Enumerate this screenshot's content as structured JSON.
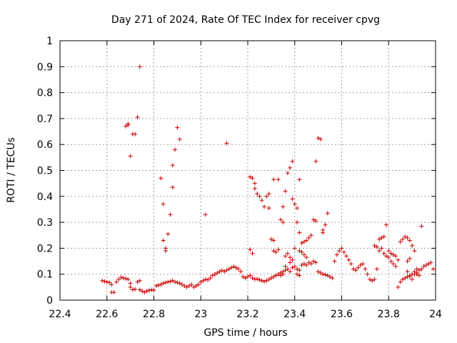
{
  "chart_data": {
    "type": "scatter",
    "title": "Day 271 of 2024, Rate Of TEC Index for receiver cpvg",
    "xlabel": "GPS time / hours",
    "ylabel": "ROTI / TECUs",
    "xlim": [
      22.4,
      24
    ],
    "ylim": [
      0,
      1
    ],
    "x_ticks": [
      22.4,
      22.6,
      22.8,
      23,
      23.2,
      23.4,
      23.6,
      23.8,
      24
    ],
    "x_tick_labels": [
      "22.4",
      "22.6",
      "22.8",
      "23",
      "23.2",
      "23.4",
      "23.6",
      "23.8",
      "24"
    ],
    "y_ticks": [
      0,
      0.1,
      0.2,
      0.3,
      0.4,
      0.5,
      0.6,
      0.7,
      0.8,
      0.9,
      1
    ],
    "y_tick_labels": [
      "0",
      "0.1",
      "0.2",
      "0.3",
      "0.4",
      "0.5",
      "0.6",
      "0.7",
      "0.8",
      "0.9",
      "1"
    ],
    "grid": true,
    "marker": "+",
    "color": "#cc0000",
    "series": [
      {
        "name": "",
        "points": [
          [
            22.58,
            0.075
          ],
          [
            22.59,
            0.072
          ],
          [
            22.6,
            0.07
          ],
          [
            22.61,
            0.068
          ],
          [
            22.62,
            0.06
          ],
          [
            22.62,
            0.03
          ],
          [
            22.63,
            0.03
          ],
          [
            22.64,
            0.07
          ],
          [
            22.65,
            0.08
          ],
          [
            22.66,
            0.088
          ],
          [
            22.67,
            0.085
          ],
          [
            22.68,
            0.083
          ],
          [
            22.69,
            0.08
          ],
          [
            22.7,
            0.065
          ],
          [
            22.7,
            0.05
          ],
          [
            22.71,
            0.04
          ],
          [
            22.72,
            0.042
          ],
          [
            22.73,
            0.07
          ],
          [
            22.74,
            0.075
          ],
          [
            22.74,
            0.04
          ],
          [
            22.75,
            0.035
          ],
          [
            22.76,
            0.03
          ],
          [
            22.77,
            0.035
          ],
          [
            22.78,
            0.038
          ],
          [
            22.79,
            0.04
          ],
          [
            22.8,
            0.038
          ],
          [
            22.81,
            0.055
          ],
          [
            22.82,
            0.058
          ],
          [
            22.83,
            0.06
          ],
          [
            22.84,
            0.065
          ],
          [
            22.85,
            0.068
          ],
          [
            22.86,
            0.07
          ],
          [
            22.87,
            0.072
          ],
          [
            22.88,
            0.075
          ],
          [
            22.89,
            0.07
          ],
          [
            22.9,
            0.068
          ],
          [
            22.91,
            0.065
          ],
          [
            22.92,
            0.06
          ],
          [
            22.93,
            0.055
          ],
          [
            22.94,
            0.05
          ],
          [
            22.95,
            0.055
          ],
          [
            22.96,
            0.06
          ],
          [
            22.97,
            0.05
          ],
          [
            22.98,
            0.055
          ],
          [
            22.99,
            0.06
          ],
          [
            23.0,
            0.07
          ],
          [
            23.01,
            0.075
          ],
          [
            23.02,
            0.08
          ],
          [
            23.03,
            0.078
          ],
          [
            23.04,
            0.085
          ],
          [
            23.05,
            0.095
          ],
          [
            23.06,
            0.1
          ],
          [
            23.07,
            0.105
          ],
          [
            23.08,
            0.11
          ],
          [
            23.09,
            0.115
          ],
          [
            23.1,
            0.11
          ],
          [
            23.11,
            0.115
          ],
          [
            23.12,
            0.12
          ],
          [
            23.13,
            0.125
          ],
          [
            23.14,
            0.13
          ],
          [
            23.15,
            0.125
          ],
          [
            23.16,
            0.12
          ],
          [
            23.17,
            0.11
          ],
          [
            23.18,
            0.09
          ],
          [
            23.19,
            0.085
          ],
          [
            23.2,
            0.09
          ],
          [
            23.21,
            0.095
          ],
          [
            23.22,
            0.085
          ],
          [
            23.23,
            0.08
          ],
          [
            23.24,
            0.082
          ],
          [
            23.25,
            0.078
          ],
          [
            23.26,
            0.075
          ],
          [
            23.27,
            0.072
          ],
          [
            23.28,
            0.075
          ],
          [
            23.29,
            0.08
          ],
          [
            23.3,
            0.085
          ],
          [
            23.31,
            0.09
          ],
          [
            23.32,
            0.095
          ],
          [
            23.33,
            0.1
          ],
          [
            23.34,
            0.105
          ],
          [
            23.35,
            0.11
          ],
          [
            23.36,
            0.115
          ],
          [
            23.37,
            0.12
          ],
          [
            23.38,
            0.11
          ],
          [
            23.39,
            0.125
          ],
          [
            23.4,
            0.13
          ],
          [
            23.41,
            0.12
          ],
          [
            23.42,
            0.115
          ],
          [
            23.43,
            0.135
          ],
          [
            23.44,
            0.14
          ],
          [
            23.45,
            0.135
          ],
          [
            23.46,
            0.145
          ],
          [
            23.47,
            0.14
          ],
          [
            23.48,
            0.15
          ],
          [
            23.49,
            0.145
          ],
          [
            23.5,
            0.11
          ],
          [
            23.51,
            0.105
          ],
          [
            23.52,
            0.1
          ],
          [
            23.53,
            0.098
          ],
          [
            23.54,
            0.095
          ],
          [
            23.55,
            0.09
          ],
          [
            23.56,
            0.085
          ],
          [
            23.57,
            0.15
          ],
          [
            23.58,
            0.175
          ],
          [
            23.59,
            0.19
          ],
          [
            23.6,
            0.2
          ],
          [
            23.61,
            0.185
          ],
          [
            23.62,
            0.17
          ],
          [
            23.63,
            0.155
          ],
          [
            23.64,
            0.14
          ],
          [
            23.65,
            0.12
          ],
          [
            23.66,
            0.115
          ],
          [
            23.67,
            0.125
          ],
          [
            23.68,
            0.135
          ],
          [
            23.69,
            0.14
          ],
          [
            23.7,
            0.12
          ],
          [
            23.71,
            0.1
          ],
          [
            23.72,
            0.08
          ],
          [
            23.73,
            0.075
          ],
          [
            23.74,
            0.08
          ],
          [
            23.75,
            0.12
          ],
          [
            23.76,
            0.19
          ],
          [
            23.77,
            0.2
          ],
          [
            23.78,
            0.18
          ],
          [
            23.79,
            0.17
          ],
          [
            23.8,
            0.165
          ],
          [
            23.81,
            0.15
          ],
          [
            23.82,
            0.14
          ],
          [
            23.83,
            0.13
          ],
          [
            23.84,
            0.05
          ],
          [
            23.85,
            0.07
          ],
          [
            23.86,
            0.08
          ],
          [
            23.87,
            0.085
          ],
          [
            23.88,
            0.09
          ],
          [
            23.89,
            0.095
          ],
          [
            23.9,
            0.1
          ],
          [
            23.91,
            0.11
          ],
          [
            23.92,
            0.105
          ],
          [
            23.93,
            0.115
          ],
          [
            23.94,
            0.12
          ],
          [
            23.95,
            0.13
          ],
          [
            23.96,
            0.135
          ],
          [
            23.97,
            0.14
          ],
          [
            23.98,
            0.145
          ],
          [
            23.99,
            0.12
          ],
          [
            22.68,
            0.67
          ],
          [
            22.69,
            0.675
          ],
          [
            22.69,
            0.68
          ],
          [
            22.7,
            0.555
          ],
          [
            22.71,
            0.64
          ],
          [
            22.72,
            0.64
          ],
          [
            22.73,
            0.705
          ],
          [
            22.74,
            0.9
          ],
          [
            22.83,
            0.47
          ],
          [
            22.84,
            0.37
          ],
          [
            22.84,
            0.23
          ],
          [
            22.85,
            0.2
          ],
          [
            22.85,
            0.19
          ],
          [
            22.86,
            0.255
          ],
          [
            22.87,
            0.33
          ],
          [
            22.88,
            0.435
          ],
          [
            22.88,
            0.52
          ],
          [
            22.89,
            0.58
          ],
          [
            22.9,
            0.665
          ],
          [
            22.91,
            0.62
          ],
          [
            23.02,
            0.33
          ],
          [
            23.11,
            0.605
          ],
          [
            23.21,
            0.195
          ],
          [
            23.22,
            0.18
          ],
          [
            23.21,
            0.475
          ],
          [
            23.22,
            0.47
          ],
          [
            23.23,
            0.45
          ],
          [
            23.23,
            0.43
          ],
          [
            23.24,
            0.41
          ],
          [
            23.25,
            0.4
          ],
          [
            23.26,
            0.385
          ],
          [
            23.27,
            0.36
          ],
          [
            23.28,
            0.4
          ],
          [
            23.29,
            0.41
          ],
          [
            23.29,
            0.355
          ],
          [
            23.3,
            0.235
          ],
          [
            23.31,
            0.23
          ],
          [
            23.31,
            0.19
          ],
          [
            23.32,
            0.185
          ],
          [
            23.33,
            0.195
          ],
          [
            23.34,
            0.31
          ],
          [
            23.35,
            0.3
          ],
          [
            23.35,
            0.36
          ],
          [
            23.36,
            0.42
          ],
          [
            23.37,
            0.49
          ],
          [
            23.38,
            0.51
          ],
          [
            23.39,
            0.535
          ],
          [
            23.39,
            0.39
          ],
          [
            23.4,
            0.37
          ],
          [
            23.41,
            0.355
          ],
          [
            23.41,
            0.3
          ],
          [
            23.42,
            0.26
          ],
          [
            23.43,
            0.22
          ],
          [
            23.44,
            0.225
          ],
          [
            23.45,
            0.23
          ],
          [
            23.46,
            0.24
          ],
          [
            23.47,
            0.25
          ],
          [
            23.48,
            0.31
          ],
          [
            23.49,
            0.305
          ],
          [
            23.5,
            0.625
          ],
          [
            23.51,
            0.62
          ],
          [
            23.52,
            0.26
          ],
          [
            23.52,
            0.27
          ],
          [
            23.53,
            0.29
          ],
          [
            23.54,
            0.335
          ],
          [
            23.33,
            0.465
          ],
          [
            23.31,
            0.465
          ],
          [
            23.42,
            0.465
          ],
          [
            23.49,
            0.535
          ],
          [
            23.36,
            0.17
          ],
          [
            23.37,
            0.18
          ],
          [
            23.38,
            0.165
          ],
          [
            23.4,
            0.2
          ],
          [
            23.42,
            0.19
          ],
          [
            23.43,
            0.185
          ],
          [
            23.44,
            0.175
          ],
          [
            23.45,
            0.165
          ],
          [
            23.36,
            0.13
          ],
          [
            23.38,
            0.145
          ],
          [
            23.39,
            0.155
          ],
          [
            23.41,
            0.1
          ],
          [
            23.42,
            0.095
          ],
          [
            23.34,
            0.095
          ],
          [
            23.35,
            0.1
          ],
          [
            23.74,
            0.21
          ],
          [
            23.75,
            0.205
          ],
          [
            23.76,
            0.235
          ],
          [
            23.77,
            0.24
          ],
          [
            23.78,
            0.245
          ],
          [
            23.79,
            0.29
          ],
          [
            23.8,
            0.19
          ],
          [
            23.81,
            0.18
          ],
          [
            23.82,
            0.175
          ],
          [
            23.83,
            0.17
          ],
          [
            23.84,
            0.155
          ],
          [
            23.85,
            0.225
          ],
          [
            23.86,
            0.235
          ],
          [
            23.87,
            0.245
          ],
          [
            23.88,
            0.24
          ],
          [
            23.89,
            0.23
          ],
          [
            23.9,
            0.21
          ],
          [
            23.91,
            0.19
          ],
          [
            23.92,
            0.1
          ],
          [
            23.93,
            0.095
          ],
          [
            23.94,
            0.285
          ],
          [
            23.88,
            0.11
          ],
          [
            23.89,
            0.09
          ],
          [
            23.9,
            0.08
          ],
          [
            23.91,
            0.1
          ],
          [
            23.92,
            0.12
          ],
          [
            23.88,
            0.15
          ],
          [
            23.89,
            0.16
          ]
        ]
      }
    ]
  }
}
